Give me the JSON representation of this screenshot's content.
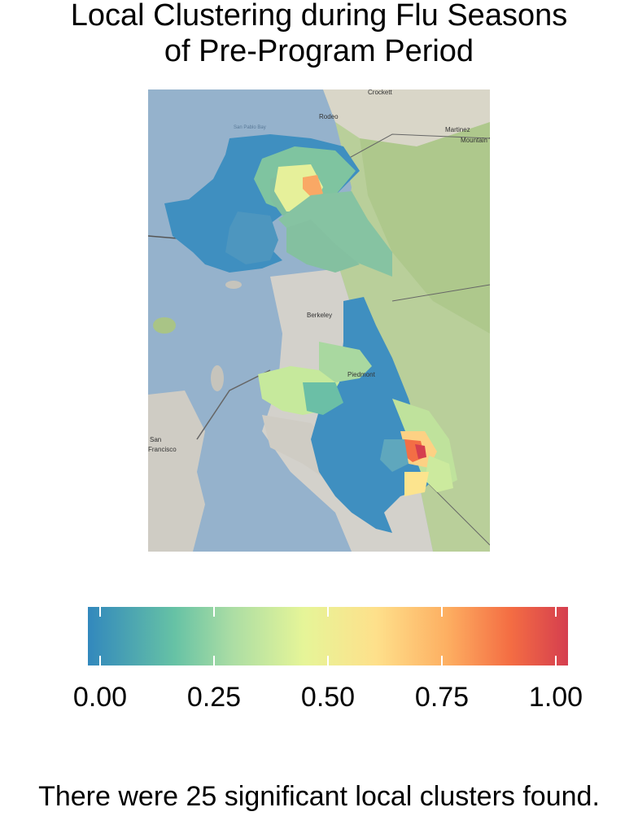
{
  "title": {
    "line1": "Local Clustering during Flu Seasons",
    "line2": "of Pre-Program Period"
  },
  "map": {
    "place_labels": [
      "Crockett",
      "Rodeo",
      "Martinez",
      "Mountain View",
      "Berkeley",
      "Piedmont",
      "San",
      "Francisco",
      "San Pablo Bay"
    ]
  },
  "legend": {
    "ticks": [
      "0.00",
      "0.25",
      "0.50",
      "0.75",
      "1.00"
    ],
    "palette": [
      "#3288bd",
      "#66c2a5",
      "#abdda4",
      "#e6f598",
      "#fee08b",
      "#fdae61",
      "#f46d43",
      "#d53e4f"
    ]
  },
  "caption": "There were 25 significant local clusters found."
}
